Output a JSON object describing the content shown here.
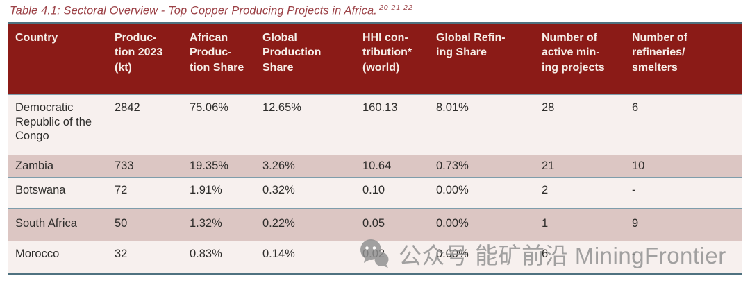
{
  "title": {
    "text": "Table 4.1: Sectoral Overview - Top Copper Producing Projects in Africa.",
    "footnote_refs": "20 21 22"
  },
  "table": {
    "columns": [
      {
        "key": "country",
        "label": "Country"
      },
      {
        "key": "production_2023_kt",
        "label": "Produc-\ntion 2023\n(kt)"
      },
      {
        "key": "african_production_share",
        "label": "African\nProduc-\ntion Share"
      },
      {
        "key": "global_production_share",
        "label": "Global\nProduction\nShare"
      },
      {
        "key": "hhi_contribution_world",
        "label": "HHI con-\ntribution*\n(world)"
      },
      {
        "key": "global_refining_share",
        "label": "Global Refin-\ning Share"
      },
      {
        "key": "active_mining_projects",
        "label": "Number of\nactive min-\ning projects"
      },
      {
        "key": "refineries_smelters",
        "label": "Number of\nrefineries/\nsmelters"
      }
    ],
    "rows": [
      {
        "country": "Democratic Republic of the Congo",
        "production_2023_kt": "2842",
        "african_production_share": "75.06%",
        "global_production_share": "12.65%",
        "hhi_contribution_world": "160.13",
        "global_refining_share": "8.01%",
        "active_mining_projects": "28",
        "refineries_smelters": "6"
      },
      {
        "country": "Zambia",
        "production_2023_kt": "733",
        "african_production_share": "19.35%",
        "global_production_share": "3.26%",
        "hhi_contribution_world": "10.64",
        "global_refining_share": "0.73%",
        "active_mining_projects": "21",
        "refineries_smelters": "10"
      },
      {
        "country": "Botswana",
        "production_2023_kt": "72",
        "african_production_share": "1.91%",
        "global_production_share": "0.32%",
        "hhi_contribution_world": "0.10",
        "global_refining_share": "0.00%",
        "active_mining_projects": "2",
        "refineries_smelters": "-"
      },
      {
        "country": "South Africa",
        "production_2023_kt": "50",
        "african_production_share": "1.32%",
        "global_production_share": "0.22%",
        "hhi_contribution_world": "0.05",
        "global_refining_share": "0.00%",
        "active_mining_projects": "1",
        "refineries_smelters": "9"
      },
      {
        "country": "Morocco",
        "production_2023_kt": "32",
        "african_production_share": "0.83%",
        "global_production_share": "0.14%",
        "hhi_contribution_world": "0.02",
        "global_refining_share": "0.00%",
        "active_mining_projects": "6",
        "refineries_smelters": "-"
      }
    ]
  },
  "watermark": {
    "icon": "wechat-icon",
    "text": "公众号 能矿前沿 MiningFrontier"
  },
  "colors": {
    "title": "#9c4247",
    "header_bg": "#8b1b17",
    "header_text": "#f6eee8",
    "body_text": "#2e2d2b",
    "row_light": "#f7f0ee",
    "row_pink": "#dcc6c3",
    "border": "#7f9dab",
    "accent_border": "#4f7280",
    "watermark": "#8f8f8f"
  }
}
